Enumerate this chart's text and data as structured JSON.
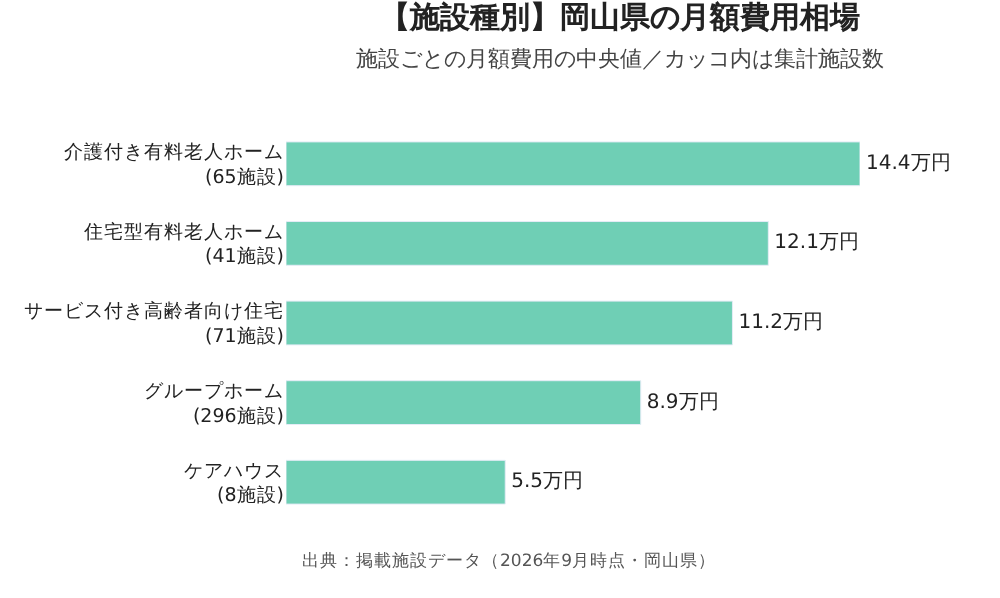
{
  "chart_data": {
    "type": "bar",
    "orientation": "horizontal",
    "title": "【施設種別】岡山県の月額費用相場",
    "subtitle": "施設ごとの月額費用の中央値／カッコ内は集計施設数",
    "categories": [
      "介護付き有料老人ホーム\n(65施設)",
      "住宅型有料老人ホーム\n(41施設)",
      "サービス付き高齢者向け住宅\n(71施設)",
      "グループホーム\n(296施設)",
      "ケアハウス\n(8施設)"
    ],
    "values": [
      14.4,
      12.1,
      11.2,
      8.9,
      5.5
    ],
    "value_labels": [
      "14.4万円",
      "12.1万円",
      "11.2万円",
      "8.9万円",
      "5.5万円"
    ],
    "color": "#6fcfb5",
    "annotations": [
      "出典：掲載施設データ（2026年9月時点・岡山県）"
    ],
    "legend": false
  }
}
